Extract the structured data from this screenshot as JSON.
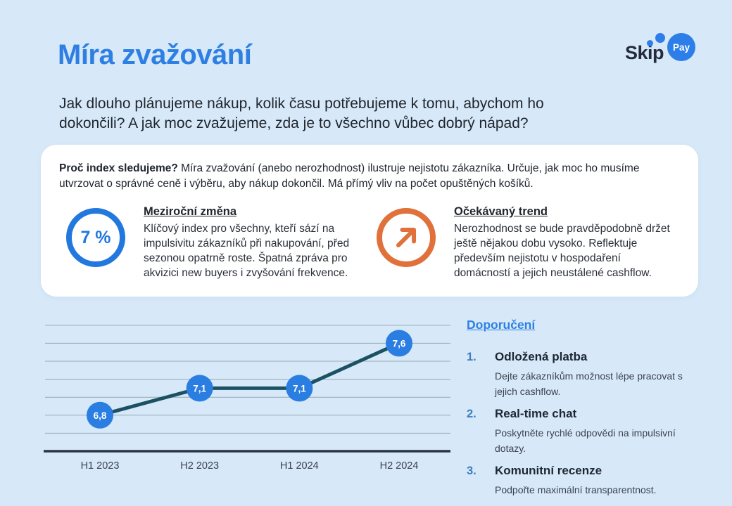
{
  "colors": {
    "background": "#D7E9F8",
    "accent_blue": "#2E7FE4",
    "logo_navy": "#242B3C",
    "circle_blue": "#2378DE",
    "circle_orange": "#E0713A",
    "line_teal": "#1B5162",
    "marker_blue": "#2A7DE1",
    "grid_gray": "#97A6B4",
    "axis_dark": "#2A3442",
    "number_blue": "#3C7FC0"
  },
  "logo": {
    "skip": "Skip",
    "pay": "Pay"
  },
  "icons": {
    "metric_1": "percent-circle-icon",
    "metric_2": "trend-up-arrow-icon"
  },
  "header": {
    "title": "Míra zvažování",
    "subtitle_lines": [
      "Jak dlouho plánujeme nákup, kolik času potřebujeme k tomu, abychom ho",
      "dokončili? A jak moc zvažujeme, zda je to všechno vůbec dobrý nápad?"
    ]
  },
  "card": {
    "intro_bold": "Proč index sledujeme?",
    "intro_rest": " Míra zvažování (anebo nerozhodnost) ilustruje nejistotu zákazníka. Určuje, jak moc ho musíme utvrzovat o správné ceně i výběru, aby nákup dokončil. Má přímý vliv na počet opuštěných košíků.",
    "metrics": [
      {
        "value": "7 %",
        "heading": "Meziroční změna",
        "body": "Klíčový index pro všechny, kteří sází na impulsivitu zákazníků při nakupování, před sezonou opatrně roste. Špatná zpráva pro akvizici new buyers i zvyšování frekvence."
      },
      {
        "heading": "Očekávaný trend",
        "body": "Nerozhodnost se bude pravděpodobně držet ještě nějakou dobu vysoko. Reflektuje především nejistotu v hospodaření domácností a jejich neustálené cashflow."
      }
    ]
  },
  "chart_data": {
    "type": "line",
    "categories": [
      "H1 2023",
      "H2 2023",
      "H1 2024",
      "H2 2024"
    ],
    "values": [
      6.8,
      7.1,
      7.1,
      7.6
    ],
    "point_labels": [
      "6,8",
      "7,1",
      "7,1",
      "7,6"
    ],
    "title": "",
    "xlabel": "",
    "ylabel": "",
    "ylim": [
      6.4,
      7.9
    ],
    "grid": true,
    "grid_values": [
      6.6,
      6.8,
      7.0,
      7.2,
      7.4,
      7.6,
      7.8
    ],
    "legend": false
  },
  "recommendations": {
    "heading": "Doporučení",
    "items": [
      {
        "num": "1.",
        "title": "Odložená platba",
        "desc": "Dejte zákazníkům možnost lépe pracovat s jejich cashflow."
      },
      {
        "num": "2.",
        "title": "Real-time chat",
        "desc": "Poskytněte rychlé odpovědi na impulsivní dotazy."
      },
      {
        "num": "3.",
        "title": "Komunitní recenze",
        "desc": "Podpořte maximální transparentnost."
      }
    ]
  }
}
